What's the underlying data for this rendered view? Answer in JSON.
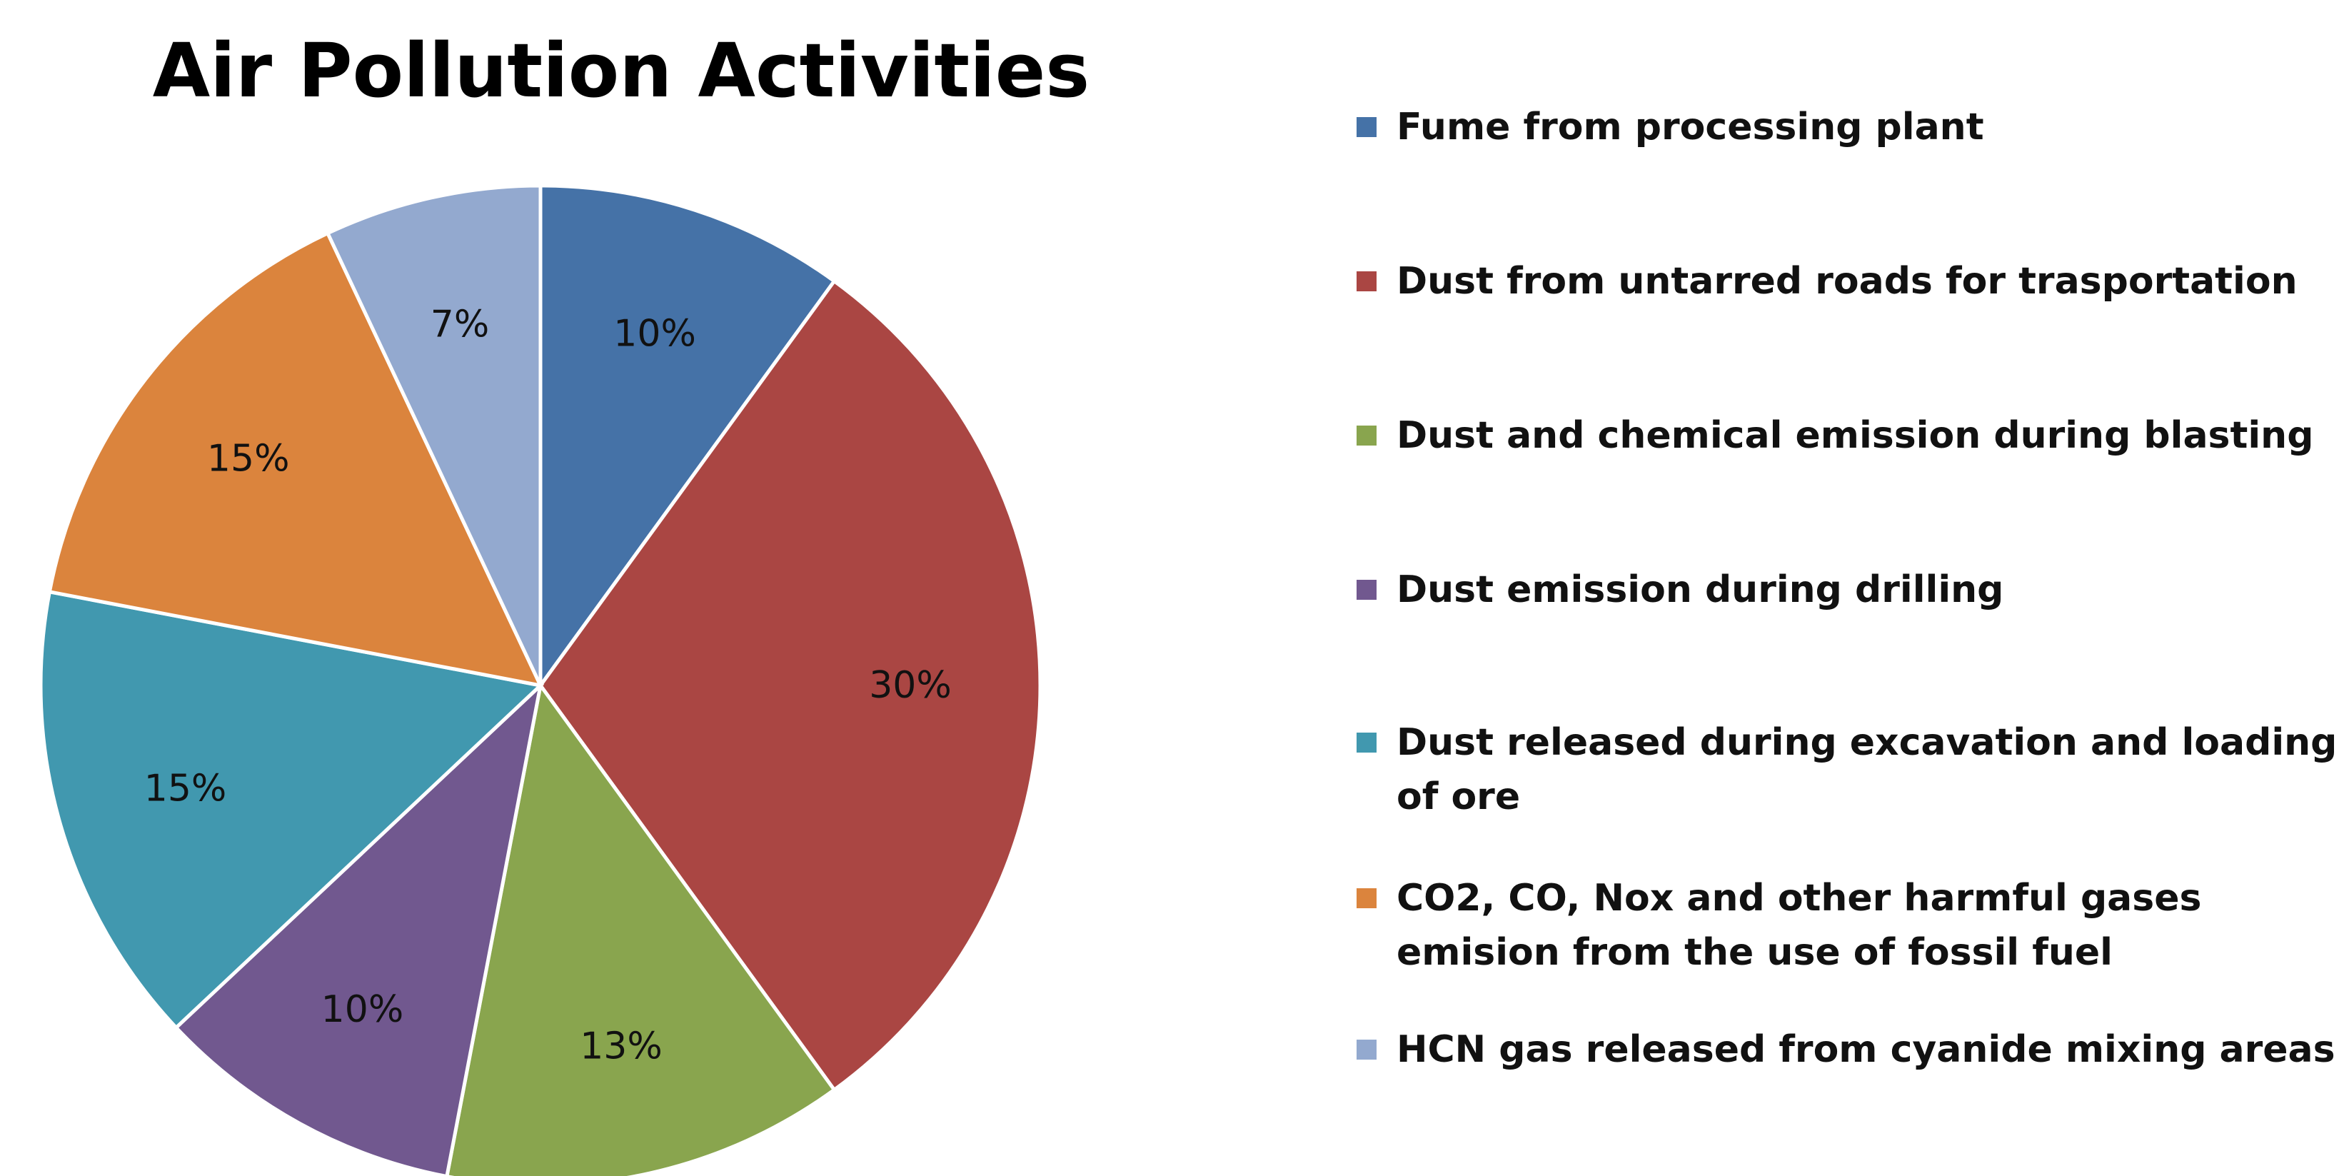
{
  "chart_data": {
    "type": "pie",
    "title": "Air Pollution Activities",
    "legend_position": "right",
    "slices": [
      {
        "label": "Fume from processing plant",
        "value": 10,
        "display": "10%",
        "color": "#4572A7"
      },
      {
        "label": "Dust from untarred roads for trasportation",
        "value": 30,
        "display": "30%",
        "color": "#AA4643"
      },
      {
        "label": "Dust and chemical emission during blasting",
        "value": 13,
        "display": "13%",
        "color": "#89A54E"
      },
      {
        "label": "Dust emission during drilling",
        "value": 10,
        "display": "10%",
        "color": "#71588F"
      },
      {
        "label": "Dust released during excavation and loading of ore",
        "value": 15,
        "display": "15%",
        "color": "#4198AF"
      },
      {
        "label": "CO2, CO, Nox and other harmful gases emision from the use of fossil fuel",
        "value": 15,
        "display": "15%",
        "color": "#DB843D"
      },
      {
        "label": "HCN gas released from cyanide mixing areas",
        "value": 7,
        "display": "7%",
        "color": "#93A9CF"
      }
    ]
  }
}
